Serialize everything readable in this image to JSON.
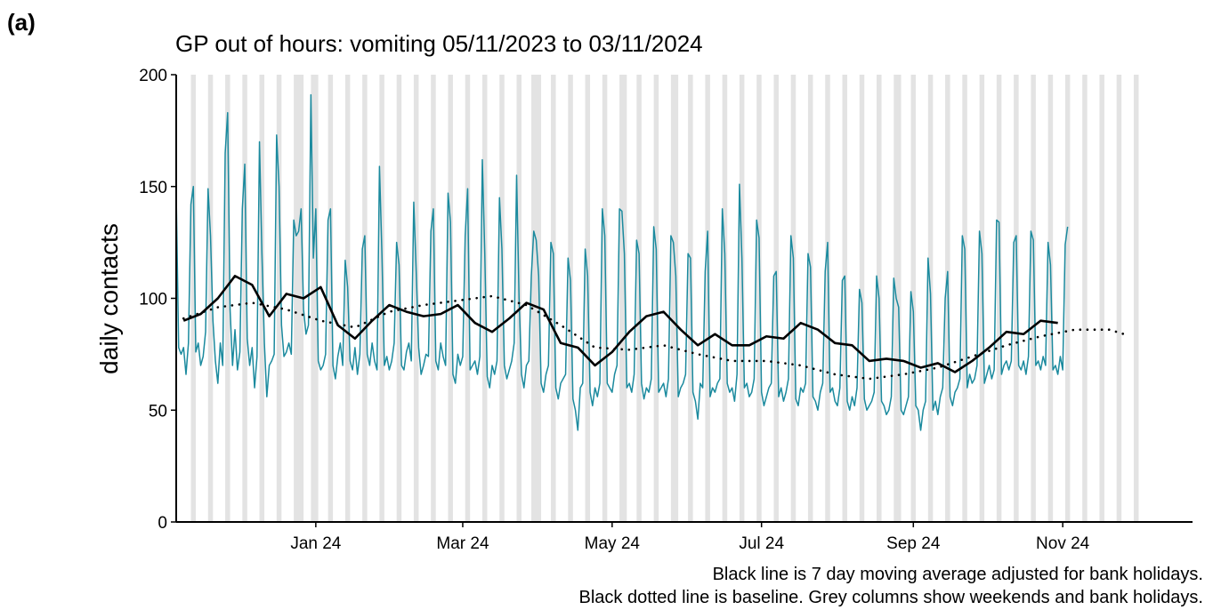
{
  "chart_data": {
    "type": "line",
    "panel_label": "(a)",
    "title": "GP out of hours: vomiting 05/11/2023 to 03/11/2024",
    "y_label": "daily contacts",
    "notes": [
      "Black line is 7 day moving average adjusted for bank holidays.",
      "Black dotted line is baseline. Grey columns show weekends and bank holidays."
    ],
    "xlim": [
      0,
      415
    ],
    "xticks": [
      {
        "value": 57,
        "label": "Jan 24"
      },
      {
        "value": 117,
        "label": "Mar 24"
      },
      {
        "value": 178,
        "label": "May 24"
      },
      {
        "value": 239,
        "label": "Jul 24"
      },
      {
        "value": 301,
        "label": "Sep 24"
      },
      {
        "value": 362,
        "label": "Nov 24"
      }
    ],
    "ylim": [
      0,
      200
    ],
    "yticks": [
      0,
      50,
      100,
      150,
      200
    ],
    "shade_color": "#e3e3e3",
    "shaded": [
      [
        6,
        8
      ],
      [
        13,
        15
      ],
      [
        20,
        22
      ],
      [
        27,
        29
      ],
      [
        34,
        36
      ],
      [
        41,
        43
      ],
      [
        48,
        52
      ],
      [
        55,
        58
      ],
      [
        62,
        64
      ],
      [
        69,
        71
      ],
      [
        76,
        78
      ],
      [
        83,
        85
      ],
      [
        90,
        92
      ],
      [
        97,
        99
      ],
      [
        104,
        106
      ],
      [
        111,
        113
      ],
      [
        118,
        120
      ],
      [
        125,
        127
      ],
      [
        132,
        134
      ],
      [
        139,
        141
      ],
      [
        145,
        149
      ],
      [
        153,
        155
      ],
      [
        160,
        162
      ],
      [
        167,
        169
      ],
      [
        174,
        176
      ],
      [
        181,
        184
      ],
      [
        188,
        190
      ],
      [
        195,
        197
      ],
      [
        202,
        205
      ],
      [
        209,
        211
      ],
      [
        216,
        218
      ],
      [
        223,
        225
      ],
      [
        230,
        232
      ],
      [
        237,
        239
      ],
      [
        244,
        246
      ],
      [
        251,
        253
      ],
      [
        258,
        260
      ],
      [
        265,
        267
      ],
      [
        272,
        274
      ],
      [
        279,
        281
      ],
      [
        286,
        288
      ],
      [
        293,
        296
      ],
      [
        300,
        302
      ],
      [
        307,
        309
      ],
      [
        314,
        316
      ],
      [
        321,
        323
      ],
      [
        328,
        330
      ],
      [
        335,
        337
      ],
      [
        342,
        344
      ],
      [
        349,
        351
      ],
      [
        356,
        358
      ],
      [
        363,
        365
      ],
      [
        370,
        372
      ],
      [
        377,
        379
      ],
      [
        384,
        386
      ],
      [
        391,
        393
      ]
    ],
    "series": [
      {
        "color": "#1b8a9e",
        "style": "solid",
        "width": 1.5,
        "x": [
          0,
          1,
          2,
          3,
          4,
          5,
          6,
          7,
          8,
          9,
          10,
          11,
          12,
          13,
          14,
          15,
          16,
          17,
          18,
          19,
          20,
          21,
          22,
          23,
          24,
          25,
          26,
          27,
          28,
          29,
          30,
          31,
          32,
          33,
          34,
          35,
          36,
          37,
          38,
          39,
          40,
          41,
          42,
          43,
          44,
          45,
          46,
          47,
          48,
          49,
          50,
          51,
          52,
          53,
          54,
          55,
          56,
          57,
          58,
          59,
          60,
          61,
          62,
          63,
          64,
          65,
          66,
          67,
          68,
          69,
          70,
          71,
          72,
          73,
          74,
          75,
          76,
          77,
          78,
          79,
          80,
          81,
          82,
          83,
          84,
          85,
          86,
          87,
          88,
          89,
          90,
          91,
          92,
          93,
          94,
          95,
          96,
          97,
          98,
          99,
          100,
          101,
          102,
          103,
          104,
          105,
          106,
          107,
          108,
          109,
          110,
          111,
          112,
          113,
          114,
          115,
          116,
          117,
          118,
          119,
          120,
          121,
          122,
          123,
          124,
          125,
          126,
          127,
          128,
          129,
          130,
          131,
          132,
          133,
          134,
          135,
          136,
          137,
          138,
          139,
          140,
          141,
          142,
          143,
          144,
          145,
          146,
          147,
          148,
          149,
          150,
          151,
          152,
          153,
          154,
          155,
          156,
          157,
          158,
          159,
          160,
          161,
          162,
          163,
          164,
          165,
          166,
          167,
          168,
          169,
          170,
          171,
          172,
          173,
          174,
          175,
          176,
          177,
          178,
          179,
          180,
          181,
          182,
          183,
          184,
          185,
          186,
          187,
          188,
          189,
          190,
          191,
          192,
          193,
          194,
          195,
          196,
          197,
          198,
          199,
          200,
          201,
          202,
          203,
          204,
          205,
          206,
          207,
          208,
          209,
          210,
          211,
          212,
          213,
          214,
          215,
          216,
          217,
          218,
          219,
          220,
          221,
          222,
          223,
          224,
          225,
          226,
          227,
          228,
          229,
          230,
          231,
          232,
          233,
          234,
          235,
          236,
          237,
          238,
          239,
          240,
          241,
          242,
          243,
          244,
          245,
          246,
          247,
          248,
          249,
          250,
          251,
          252,
          253,
          254,
          255,
          256,
          257,
          258,
          259,
          260,
          261,
          262,
          263,
          264,
          265,
          266,
          267,
          268,
          269,
          270,
          271,
          272,
          273,
          274,
          275,
          276,
          277,
          278,
          279,
          280,
          281,
          282,
          283,
          284,
          285,
          286,
          287,
          288,
          289,
          290,
          291,
          292,
          293,
          294,
          295,
          296,
          297,
          298,
          299,
          300,
          301,
          302,
          303,
          304,
          305,
          306,
          307,
          308,
          309,
          310,
          311,
          312,
          313,
          314,
          315,
          316,
          317,
          318,
          319,
          320,
          321,
          322,
          323,
          324,
          325,
          326,
          327,
          328,
          329,
          330,
          331,
          332,
          333,
          334,
          335,
          336,
          337,
          338,
          339,
          340,
          341,
          342,
          343,
          344,
          345,
          346,
          347,
          348,
          349,
          350,
          351,
          352,
          353,
          354,
          355,
          356,
          357,
          358,
          359,
          360,
          361,
          362,
          363,
          364
        ],
        "values": [
          147,
          78,
          75,
          78,
          66,
          80,
          142,
          150,
          76,
          80,
          70,
          74,
          85,
          149,
          128,
          90,
          72,
          62,
          80,
          70,
          165,
          183,
          95,
          70,
          86,
          68,
          76,
          140,
          160,
          82,
          70,
          78,
          60,
          74,
          170,
          120,
          80,
          56,
          70,
          72,
          75,
          173,
          150,
          88,
          74,
          76,
          80,
          75,
          135,
          128,
          130,
          140,
          95,
          84,
          88,
          191,
          118,
          140,
          72,
          68,
          70,
          75,
          135,
          140,
          70,
          64,
          74,
          80,
          70,
          117,
          105,
          72,
          68,
          78,
          66,
          75,
          122,
          128,
          75,
          70,
          80,
          72,
          68,
          159,
          120,
          70,
          74,
          68,
          72,
          80,
          125,
          115,
          70,
          68,
          76,
          80,
          72,
          143,
          112,
          78,
          66,
          70,
          75,
          74,
          130,
          140,
          72,
          68,
          80,
          74,
          70,
          147,
          134,
          66,
          62,
          75,
          70,
          74,
          128,
          149,
          68,
          70,
          72,
          66,
          74,
          162,
          120,
          65,
          60,
          70,
          66,
          72,
          145,
          122,
          70,
          64,
          68,
          72,
          80,
          155,
          100,
          66,
          60,
          70,
          72,
          110,
          130,
          126,
          110,
          62,
          58,
          66,
          70,
          125,
          120,
          60,
          55,
          62,
          64,
          66,
          118,
          108,
          55,
          50,
          41,
          60,
          62,
          122,
          110,
          58,
          52,
          60,
          56,
          62,
          140,
          128,
          62,
          60,
          58,
          66,
          70,
          140,
          139,
          120,
          60,
          62,
          58,
          66,
          126,
          120,
          62,
          55,
          60,
          58,
          64,
          132,
          122,
          58,
          60,
          62,
          56,
          64,
          128,
          125,
          110,
          56,
          60,
          62,
          66,
          120,
          118,
          58,
          54,
          46,
          62,
          60,
          112,
          130,
          56,
          60,
          58,
          62,
          64,
          140,
          120,
          62,
          58,
          60,
          54,
          66,
          151,
          118,
          60,
          62,
          56,
          58,
          64,
          135,
          127,
          58,
          52,
          56,
          60,
          62,
          110,
          112,
          56,
          60,
          54,
          58,
          64,
          128,
          118,
          55,
          52,
          60,
          58,
          62,
          120,
          114,
          56,
          54,
          50,
          58,
          62,
          112,
          125,
          58,
          60,
          54,
          52,
          60,
          108,
          110,
          54,
          50,
          56,
          52,
          60,
          104,
          98,
          55,
          50,
          52,
          54,
          58,
          110,
          100,
          54,
          52,
          48,
          50,
          56,
          109,
          100,
          96,
          50,
          48,
          52,
          56,
          103,
          94,
          52,
          50,
          41,
          50,
          54,
          118,
          102,
          50,
          54,
          48,
          56,
          60,
          100,
          112,
          56,
          52,
          58,
          60,
          64,
          128,
          122,
          60,
          66,
          62,
          64,
          70,
          130,
          120,
          62,
          66,
          70,
          64,
          68,
          135,
          134,
          66,
          70,
          72,
          68,
          72,
          125,
          128,
          70,
          68,
          72,
          66,
          74,
          130,
          126,
          70,
          72,
          68,
          74,
          70,
          125,
          115,
          68,
          70,
          66,
          74,
          68,
          124,
          132
        ]
      },
      {
        "color": "#000000",
        "style": "solid",
        "width": 2.6,
        "x": [
          3,
          10,
          17,
          24,
          31,
          38,
          45,
          52,
          59,
          66,
          73,
          80,
          87,
          94,
          101,
          108,
          115,
          122,
          129,
          136,
          143,
          150,
          157,
          164,
          171,
          178,
          185,
          192,
          199,
          206,
          213,
          220,
          227,
          234,
          241,
          248,
          255,
          262,
          269,
          276,
          283,
          290,
          297,
          304,
          311,
          318,
          325,
          332,
          339,
          346,
          353,
          360
        ],
        "values": [
          90,
          93,
          100,
          110,
          106,
          92,
          102,
          100,
          105,
          88,
          82,
          90,
          97,
          94,
          92,
          93,
          97,
          89,
          85,
          91,
          98,
          95,
          80,
          78,
          70,
          76,
          85,
          92,
          94,
          86,
          79,
          84,
          79,
          79,
          83,
          82,
          89,
          86,
          80,
          79,
          72,
          73,
          72,
          69,
          71,
          67,
          72,
          78,
          85,
          84,
          90,
          89
        ]
      },
      {
        "color": "#000000",
        "style": "dotted",
        "width": 2.6,
        "x": [
          3,
          17,
          31,
          45,
          59,
          73,
          87,
          101,
          115,
          129,
          143,
          157,
          171,
          185,
          199,
          213,
          227,
          241,
          255,
          269,
          283,
          297,
          311,
          325,
          339,
          353,
          367,
          381,
          387
        ],
        "values": [
          91,
          96,
          98,
          95,
          90,
          87,
          94,
          97,
          99,
          101,
          97,
          88,
          78,
          77,
          79,
          75,
          72,
          72,
          70,
          66,
          64,
          66,
          69,
          74,
          79,
          83,
          86,
          86,
          84
        ]
      }
    ]
  }
}
